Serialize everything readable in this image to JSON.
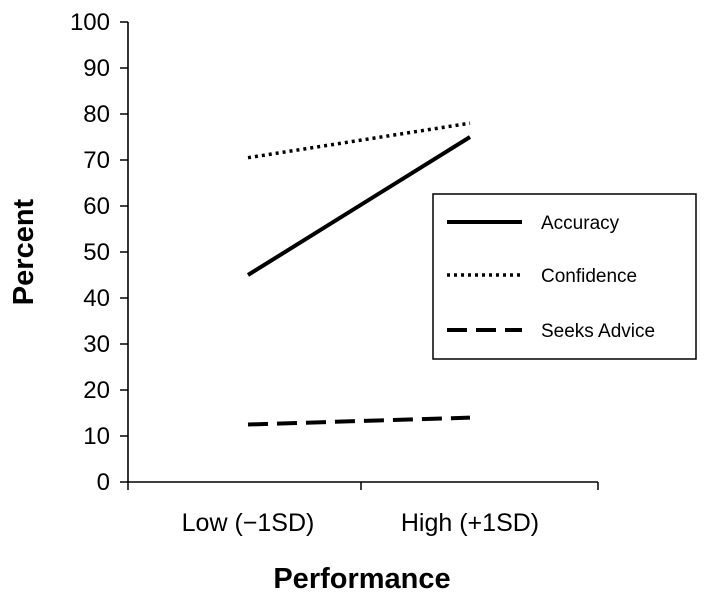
{
  "chart_data": {
    "type": "line",
    "title": "",
    "xlabel": "Performance",
    "ylabel": "Percent",
    "categories": [
      "Low (−1SD)",
      "High (+1SD)"
    ],
    "ylim": [
      0,
      100
    ],
    "yticks": [
      "0",
      "10",
      "20",
      "30",
      "40",
      "50",
      "60",
      "70",
      "80",
      "90",
      "100"
    ],
    "grid": false,
    "legend_position": "right",
    "series": [
      {
        "name": "Accuracy",
        "values": [
          45,
          75
        ],
        "style": "solid"
      },
      {
        "name": "Confidence",
        "values": [
          70.5,
          78
        ],
        "style": "dotted"
      },
      {
        "name": "Seeks Advice",
        "values": [
          12.5,
          14
        ],
        "style": "dashed"
      }
    ]
  }
}
